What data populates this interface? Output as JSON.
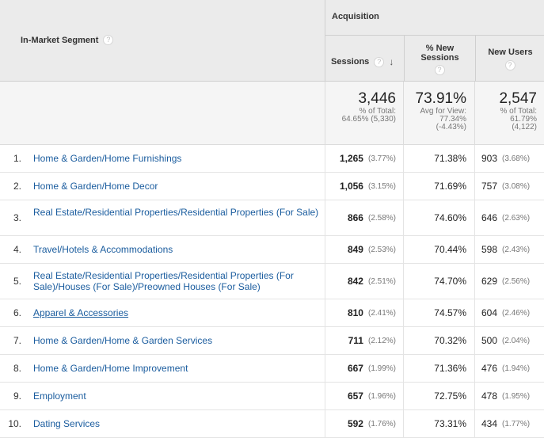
{
  "header": {
    "segment_label": "In-Market Segment",
    "group_label": "Acquisition",
    "columns": {
      "sessions": "Sessions",
      "new_sessions_line1": "% New",
      "new_sessions_line2": "Sessions",
      "new_users": "New Users"
    },
    "help_glyph": "?",
    "sort_glyph": "↓"
  },
  "totals": {
    "sessions": {
      "value": "3,446",
      "line1": "% of Total:",
      "line2": "64.65% (5,330)"
    },
    "new_sessions": {
      "value": "73.91%",
      "line1": "Avg for View:",
      "line2": "77.34%",
      "line3": "(-4.43%)"
    },
    "new_users": {
      "value": "2,547",
      "line1": "% of Total:",
      "line2": "61.79%",
      "line3": "(4,122)"
    }
  },
  "rows": [
    {
      "num": "1.",
      "segment": "Home & Garden/Home Furnishings",
      "sessions": "1,265",
      "sessions_pct": "(3.77%)",
      "new_sessions": "71.38%",
      "new_users": "903",
      "new_users_pct": "(3.68%)"
    },
    {
      "num": "2.",
      "segment": "Home & Garden/Home Decor",
      "sessions": "1,056",
      "sessions_pct": "(3.15%)",
      "new_sessions": "71.69%",
      "new_users": "757",
      "new_users_pct": "(3.08%)"
    },
    {
      "num": "3.",
      "segment": "Real Estate/Residential Properties/Residential Properties (For Sale)",
      "sessions": "866",
      "sessions_pct": "(2.58%)",
      "new_sessions": "74.60%",
      "new_users": "646",
      "new_users_pct": "(2.63%)"
    },
    {
      "num": "4.",
      "segment": "Travel/Hotels & Accommodations",
      "sessions": "849",
      "sessions_pct": "(2.53%)",
      "new_sessions": "70.44%",
      "new_users": "598",
      "new_users_pct": "(2.43%)"
    },
    {
      "num": "5.",
      "segment": "Real Estate/Residential Properties/Residential Properties (For Sale)/Houses (For Sale)/Preowned Houses (For Sale)",
      "sessions": "842",
      "sessions_pct": "(2.51%)",
      "new_sessions": "74.70%",
      "new_users": "629",
      "new_users_pct": "(2.56%)"
    },
    {
      "num": "6.",
      "segment": "Apparel & Accessories",
      "sessions": "810",
      "sessions_pct": "(2.41%)",
      "new_sessions": "74.57%",
      "new_users": "604",
      "new_users_pct": "(2.46%)"
    },
    {
      "num": "7.",
      "segment": "Home & Garden/Home & Garden Services",
      "sessions": "711",
      "sessions_pct": "(2.12%)",
      "new_sessions": "70.32%",
      "new_users": "500",
      "new_users_pct": "(2.04%)"
    },
    {
      "num": "8.",
      "segment": "Home & Garden/Home Improvement",
      "sessions": "667",
      "sessions_pct": "(1.99%)",
      "new_sessions": "71.36%",
      "new_users": "476",
      "new_users_pct": "(1.94%)"
    },
    {
      "num": "9.",
      "segment": "Employment",
      "sessions": "657",
      "sessions_pct": "(1.96%)",
      "new_sessions": "72.75%",
      "new_users": "478",
      "new_users_pct": "(1.95%)"
    },
    {
      "num": "10.",
      "segment": "Dating Services",
      "sessions": "592",
      "sessions_pct": "(1.76%)",
      "new_sessions": "73.31%",
      "new_users": "434",
      "new_users_pct": "(1.77%)"
    }
  ]
}
